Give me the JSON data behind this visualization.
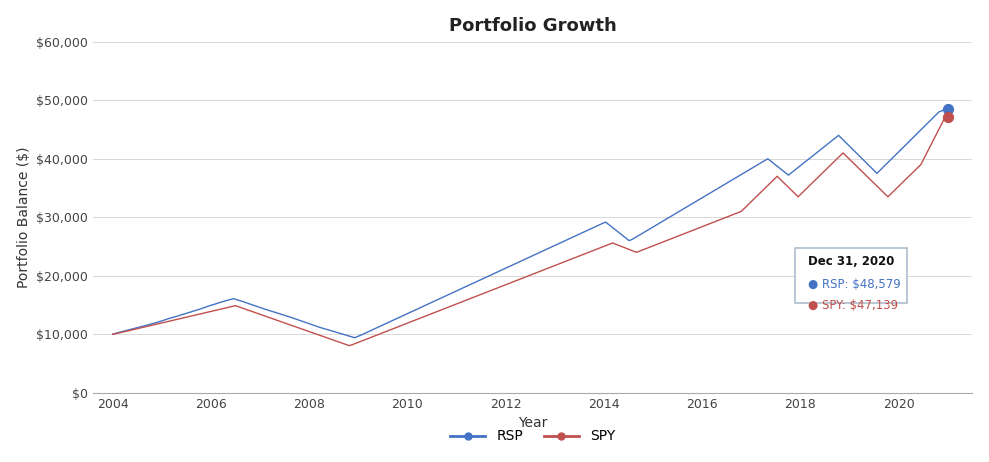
{
  "title": "Portfolio Growth",
  "xlabel": "Year",
  "ylabel": "Portfolio Balance ($)",
  "rsp_color": "#4472C4",
  "spy_color": "#C0504D",
  "background_color": "#FFFFFF",
  "grid_color": "#D8D8D8",
  "annotation_box": {
    "title": "Dec 31, 2020",
    "rsp_label": "RSP: $48,579",
    "spy_label": "SPY: $47,139"
  },
  "ylim": [
    0,
    60000
  ],
  "yticks": [
    0,
    10000,
    20000,
    30000,
    40000,
    50000,
    60000
  ],
  "xticks": [
    2004,
    2006,
    2008,
    2010,
    2012,
    2014,
    2016,
    2018,
    2020
  ],
  "rsp_data": [
    10000,
    10150,
    10280,
    10420,
    10560,
    10680,
    10820,
    10950,
    11080,
    11200,
    11350,
    11480,
    11600,
    11750,
    11890,
    12020,
    12180,
    12350,
    12500,
    12680,
    12820,
    12950,
    13100,
    13280,
    13420,
    13580,
    13750,
    13900,
    14050,
    14200,
    14380,
    14550,
    14720,
    14900,
    15050,
    15200,
    15380,
    15520,
    15680,
    15820,
    15950,
    16080,
    15900,
    15750,
    15600,
    15420,
    15250,
    15080,
    14900,
    14720,
    14550,
    14380,
    14200,
    14050,
    13900,
    13750,
    13580,
    13420,
    13280,
    13100,
    12950,
    12780,
    12600,
    12420,
    12250,
    12080,
    11900,
    11720,
    11550,
    11380,
    11200,
    11050,
    10900,
    10750,
    10600,
    10450,
    10300,
    10150,
    10000,
    9850,
    9700,
    9550,
    9400,
    9600,
    9820,
    10050,
    10280,
    10520,
    10750,
    10980,
    11220,
    11450,
    11680,
    11920,
    12150,
    12380,
    12620,
    12850,
    13080,
    13320,
    13550,
    13780,
    14020,
    14250,
    14480,
    14720,
    14950,
    15180,
    15420,
    15650,
    15880,
    16120,
    16350,
    16580,
    16820,
    17050,
    17280,
    17520,
    17750,
    17980,
    18220,
    18450,
    18680,
    18920,
    19150,
    19380,
    19620,
    19850,
    20080,
    20320,
    20550,
    20780,
    21020,
    21250,
    21480,
    21720,
    21950,
    22180,
    22420,
    22650,
    22880,
    23120,
    23350,
    23580,
    23820,
    24050,
    24280,
    24520,
    24750,
    24980,
    25220,
    25450,
    25680,
    25920,
    26150,
    26380,
    26620,
    26850,
    27080,
    27320,
    27550,
    27780,
    28020,
    28250,
    28480,
    28720,
    28950,
    29180,
    28800,
    28400,
    28000,
    27600,
    27200,
    26800,
    26400,
    26000,
    26200,
    26500,
    26800,
    27100,
    27400,
    27700,
    28000,
    28300,
    28600,
    28900,
    29200,
    29500,
    29800,
    30100,
    30400,
    30700,
    31000,
    31300,
    31600,
    31900,
    32200,
    32500,
    32800,
    33100,
    33400,
    33700,
    34000,
    34300,
    34600,
    34900,
    35200,
    35500,
    35800,
    36100,
    36400,
    36700,
    37000,
    37300,
    37600,
    37900,
    38200,
    38500,
    38800,
    39100,
    39400,
    39700,
    40000,
    39600,
    39200,
    38800,
    38400,
    38000,
    37600,
    37200,
    37600,
    38000,
    38400,
    38800,
    39200,
    39600,
    40000,
    40400,
    40800,
    41200,
    41600,
    42000,
    42400,
    42800,
    43200,
    43600,
    44000,
    43500,
    43000,
    42500,
    42000,
    41500,
    41000,
    40500,
    40000,
    39500,
    39000,
    38500,
    38000,
    37500,
    38000,
    38500,
    39000,
    39500,
    40000,
    40500,
    41000,
    41500,
    42000,
    42500,
    43000,
    43500,
    44000,
    44500,
    45000,
    45500,
    46000,
    46500,
    47000,
    47500,
    48000,
    48200,
    48400,
    48579
  ],
  "spy_data": [
    10000,
    10100,
    10200,
    10320,
    10440,
    10560,
    10680,
    10800,
    10920,
    11040,
    11160,
    11280,
    11400,
    11520,
    11640,
    11760,
    11880,
    12000,
    12120,
    12240,
    12360,
    12480,
    12600,
    12720,
    12840,
    12960,
    13080,
    13200,
    13320,
    13440,
    13560,
    13680,
    13800,
    13920,
    14040,
    14160,
    14280,
    14400,
    14520,
    14640,
    14760,
    14880,
    14700,
    14520,
    14340,
    14160,
    13980,
    13800,
    13620,
    13440,
    13260,
    13080,
    12900,
    12720,
    12540,
    12360,
    12180,
    12000,
    11820,
    11640,
    11460,
    11280,
    11100,
    10920,
    10740,
    10560,
    10380,
    10200,
    10020,
    9840,
    9660,
    9480,
    9300,
    9120,
    8940,
    8760,
    8580,
    8400,
    8220,
    8050,
    8200,
    8400,
    8600,
    8800,
    9000,
    9200,
    9400,
    9600,
    9800,
    10000,
    10200,
    10400,
    10600,
    10800,
    11000,
    11200,
    11400,
    11600,
    11800,
    12000,
    12200,
    12400,
    12600,
    12800,
    13000,
    13200,
    13400,
    13600,
    13800,
    14000,
    14200,
    14400,
    14600,
    14800,
    15000,
    15200,
    15400,
    15600,
    15800,
    16000,
    16200,
    16400,
    16600,
    16800,
    17000,
    17200,
    17400,
    17600,
    17800,
    18000,
    18200,
    18400,
    18600,
    18800,
    19000,
    19200,
    19400,
    19600,
    19800,
    20000,
    20200,
    20400,
    20600,
    20800,
    21000,
    21200,
    21400,
    21600,
    21800,
    22000,
    22200,
    22400,
    22600,
    22800,
    23000,
    23200,
    23400,
    23600,
    23800,
    24000,
    24200,
    24400,
    24600,
    24800,
    25000,
    25200,
    25400,
    25600,
    25400,
    25200,
    25000,
    24800,
    24600,
    24400,
    24200,
    24000,
    24200,
    24400,
    24600,
    24800,
    25000,
    25200,
    25400,
    25600,
    25800,
    26000,
    26200,
    26400,
    26600,
    26800,
    27000,
    27200,
    27400,
    27600,
    27800,
    28000,
    28200,
    28400,
    28600,
    28800,
    29000,
    29200,
    29400,
    29600,
    29800,
    30000,
    30200,
    30400,
    30600,
    30800,
    31000,
    31500,
    32000,
    32500,
    33000,
    33500,
    34000,
    34500,
    35000,
    35500,
    36000,
    36500,
    37000,
    36500,
    36000,
    35500,
    35000,
    34500,
    34000,
    33500,
    34000,
    34500,
    35000,
    35500,
    36000,
    36500,
    37000,
    37500,
    38000,
    38500,
    39000,
    39500,
    40000,
    40500,
    41000,
    40500,
    40000,
    39500,
    39000,
    38500,
    38000,
    37500,
    37000,
    36500,
    36000,
    35500,
    35000,
    34500,
    34000,
    33500,
    34000,
    34500,
    35000,
    35500,
    36000,
    36500,
    37000,
    37500,
    38000,
    38500,
    39000,
    40000,
    41000,
    42000,
    43000,
    44000,
    45000,
    46000,
    47000,
    47139
  ]
}
